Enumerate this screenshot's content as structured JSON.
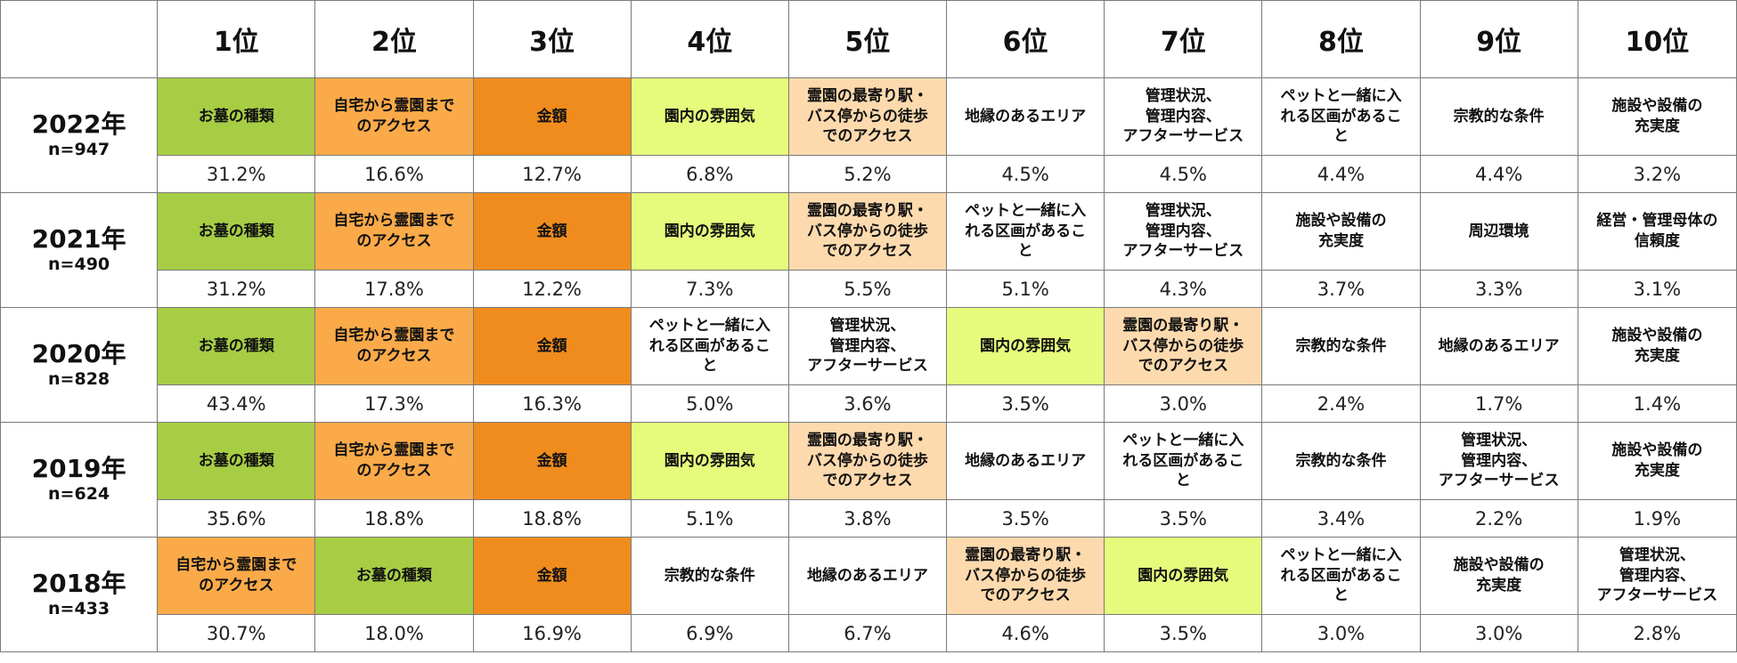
{
  "colors": {
    "お墓の種類": "#a7cd45",
    "自宅から霊園までのアクセス": "#fbaa49",
    "金額": "#f08c1e",
    "園内の雰囲気": "#e6fb7b",
    "霊園の最寄り駅・バス停からの徒歩でのアクセス": "#fddaae"
  },
  "chart_data": {
    "type": "table",
    "ranks": [
      "1位",
      "2位",
      "3位",
      "4位",
      "5位",
      "6位",
      "7位",
      "8位",
      "9位",
      "10位"
    ],
    "rows": [
      {
        "year": "2022年",
        "n": "n=947",
        "items": [
          {
            "label": "お墓の種類",
            "display": "お墓の種類",
            "value": "31.2%"
          },
          {
            "label": "自宅から霊園までのアクセス",
            "display": "自宅から霊園まで\nのアクセス",
            "value": "16.6%"
          },
          {
            "label": "金額",
            "display": "金額",
            "value": "12.7%"
          },
          {
            "label": "園内の雰囲気",
            "display": "園内の雰囲気",
            "value": "6.8%"
          },
          {
            "label": "霊園の最寄り駅・バス停からの徒歩でのアクセス",
            "display": "霊園の最寄り駅・\nバス停からの徒歩\nでのアクセス",
            "value": "5.2%"
          },
          {
            "label": "地縁のあるエリア",
            "display": "地縁のあるエリア",
            "value": "4.5%"
          },
          {
            "label": "管理状況、管理内容、アフターサービス",
            "display": "管理状況、\n管理内容、\nアフターサービス",
            "value": "4.5%"
          },
          {
            "label": "ペットと一緒に入れる区画があること",
            "display": "ペットと一緒に入\nれる区画があるこ\nと",
            "value": "4.4%"
          },
          {
            "label": "宗教的な条件",
            "display": "宗教的な条件",
            "value": "4.4%"
          },
          {
            "label": "施設や設備の充実度",
            "display": "施設や設備の\n充実度",
            "value": "3.2%"
          }
        ]
      },
      {
        "year": "2021年",
        "n": "n=490",
        "items": [
          {
            "label": "お墓の種類",
            "display": "お墓の種類",
            "value": "31.2%"
          },
          {
            "label": "自宅から霊園までのアクセス",
            "display": "自宅から霊園まで\nのアクセス",
            "value": "17.8%"
          },
          {
            "label": "金額",
            "display": "金額",
            "value": "12.2%"
          },
          {
            "label": "園内の雰囲気",
            "display": "園内の雰囲気",
            "value": "7.3%"
          },
          {
            "label": "霊園の最寄り駅・バス停からの徒歩でのアクセス",
            "display": "霊園の最寄り駅・\nバス停からの徒歩\nでのアクセス",
            "value": "5.5%"
          },
          {
            "label": "ペットと一緒に入れる区画があること",
            "display": "ペットと一緒に入\nれる区画があるこ\nと",
            "value": "5.1%"
          },
          {
            "label": "管理状況、管理内容、アフターサービス",
            "display": "管理状況、\n管理内容、\nアフターサービス",
            "value": "4.3%"
          },
          {
            "label": "施設や設備の充実度",
            "display": "施設や設備の\n充実度",
            "value": "3.7%"
          },
          {
            "label": "周辺環境",
            "display": "周辺環境",
            "value": "3.3%"
          },
          {
            "label": "経営・管理母体の信頼度",
            "display": "経営・管理母体の\n信頼度",
            "value": "3.1%"
          }
        ]
      },
      {
        "year": "2020年",
        "n": "n=828",
        "items": [
          {
            "label": "お墓の種類",
            "display": "お墓の種類",
            "value": "43.4%"
          },
          {
            "label": "自宅から霊園までのアクセス",
            "display": "自宅から霊園まで\nのアクセス",
            "value": "17.3%"
          },
          {
            "label": "金額",
            "display": "金額",
            "value": "16.3%"
          },
          {
            "label": "ペットと一緒に入れる区画があること",
            "display": "ペットと一緒に入\nれる区画があるこ\nと",
            "value": "5.0%"
          },
          {
            "label": "管理状況、管理内容、アフターサービス",
            "display": "管理状況、\n管理内容、\nアフターサービス",
            "value": "3.6%"
          },
          {
            "label": "園内の雰囲気",
            "display": "園内の雰囲気",
            "value": "3.5%"
          },
          {
            "label": "霊園の最寄り駅・バス停からの徒歩でのアクセス",
            "display": "霊園の最寄り駅・\nバス停からの徒歩\nでのアクセス",
            "value": "3.0%"
          },
          {
            "label": "宗教的な条件",
            "display": "宗教的な条件",
            "value": "2.4%"
          },
          {
            "label": "地縁のあるエリア",
            "display": "地縁のあるエリア",
            "value": "1.7%"
          },
          {
            "label": "施設や設備の充実度",
            "display": "施設や設備の\n充実度",
            "value": "1.4%"
          }
        ]
      },
      {
        "year": "2019年",
        "n": "n=624",
        "items": [
          {
            "label": "お墓の種類",
            "display": "お墓の種類",
            "value": "35.6%"
          },
          {
            "label": "自宅から霊園までのアクセス",
            "display": "自宅から霊園まで\nのアクセス",
            "value": "18.8%"
          },
          {
            "label": "金額",
            "display": "金額",
            "value": "18.8%"
          },
          {
            "label": "園内の雰囲気",
            "display": "園内の雰囲気",
            "value": "5.1%"
          },
          {
            "label": "霊園の最寄り駅・バス停からの徒歩でのアクセス",
            "display": "霊園の最寄り駅・\nバス停からの徒歩\nでのアクセス",
            "value": "3.8%"
          },
          {
            "label": "地縁のあるエリア",
            "display": "地縁のあるエリア",
            "value": "3.5%"
          },
          {
            "label": "ペットと一緒に入れる区画があること",
            "display": "ペットと一緒に入\nれる区画があるこ\nと",
            "value": "3.5%"
          },
          {
            "label": "宗教的な条件",
            "display": "宗教的な条件",
            "value": "3.4%"
          },
          {
            "label": "管理状況、管理内容、アフターサービス",
            "display": "管理状況、\n管理内容、\nアフターサービス",
            "value": "2.2%"
          },
          {
            "label": "施設や設備の充実度",
            "display": "施設や設備の\n充実度",
            "value": "1.9%"
          }
        ]
      },
      {
        "year": "2018年",
        "n": "n=433",
        "items": [
          {
            "label": "自宅から霊園までのアクセス",
            "display": "自宅から霊園まで\nのアクセス",
            "value": "30.7%"
          },
          {
            "label": "お墓の種類",
            "display": "お墓の種類",
            "value": "18.0%"
          },
          {
            "label": "金額",
            "display": "金額",
            "value": "16.9%"
          },
          {
            "label": "宗教的な条件",
            "display": "宗教的な条件",
            "value": "6.9%"
          },
          {
            "label": "地縁のあるエリア",
            "display": "地縁のあるエリア",
            "value": "6.7%"
          },
          {
            "label": "霊園の最寄り駅・バス停からの徒歩でのアクセス",
            "display": "霊園の最寄り駅・\nバス停からの徒歩\nでのアクセス",
            "value": "4.6%"
          },
          {
            "label": "園内の雰囲気",
            "display": "園内の雰囲気",
            "value": "3.5%"
          },
          {
            "label": "ペットと一緒に入れる区画があること",
            "display": "ペットと一緒に入\nれる区画があるこ\nと",
            "value": "3.0%"
          },
          {
            "label": "施設や設備の充実度",
            "display": "施設や設備の\n充実度",
            "value": "3.0%"
          },
          {
            "label": "管理状況、管理内容、アフターサービス",
            "display": "管理状況、\n管理内容、\nアフターサービス",
            "value": "2.8%"
          }
        ]
      }
    ]
  }
}
